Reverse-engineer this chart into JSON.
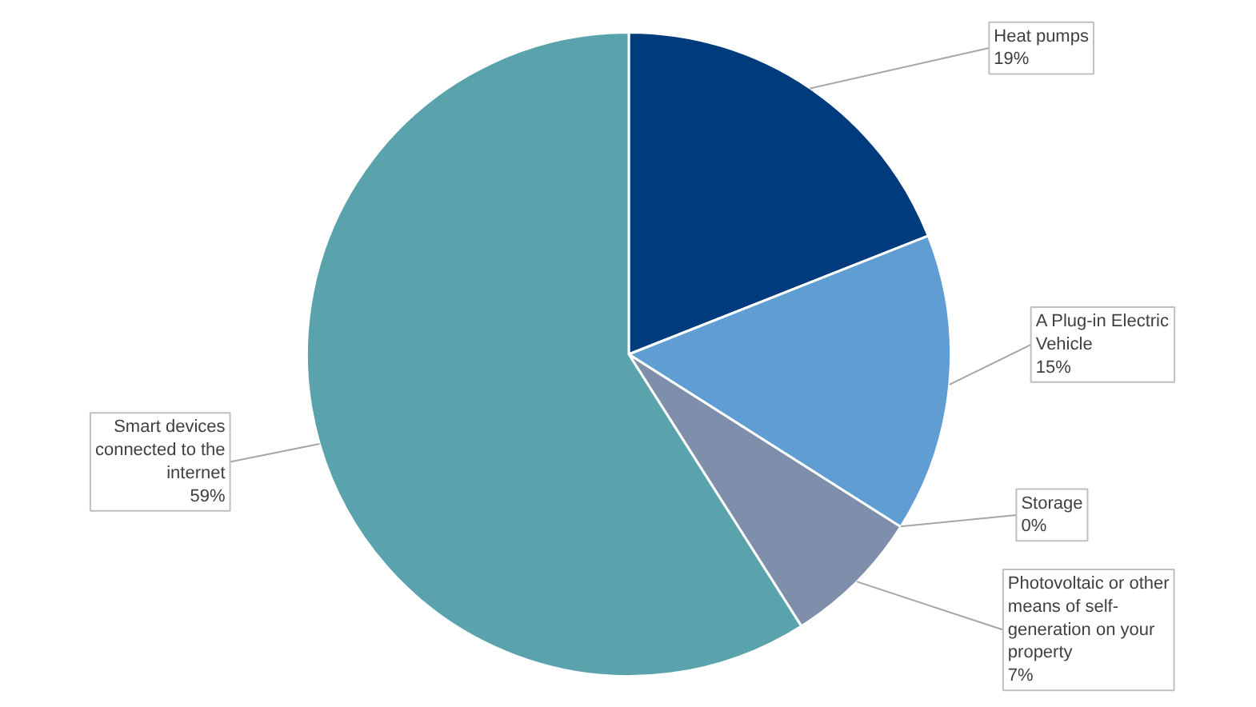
{
  "chart_data": {
    "type": "pie",
    "categories": [
      "Heat pumps",
      "A Plug-in Electric Vehicle",
      "Storage",
      "Photovoltaic or other means of self-generation on your property",
      "Smart devices connected to the internet"
    ],
    "values": [
      19,
      15,
      0,
      7,
      59
    ],
    "value_labels": [
      "19%",
      "15%",
      "0%",
      "7%",
      "59%"
    ],
    "colors": [
      "#003b7e",
      "#5f9dd3",
      "#4f6a8f",
      "#7f8fab",
      "#5aa3ad"
    ]
  }
}
